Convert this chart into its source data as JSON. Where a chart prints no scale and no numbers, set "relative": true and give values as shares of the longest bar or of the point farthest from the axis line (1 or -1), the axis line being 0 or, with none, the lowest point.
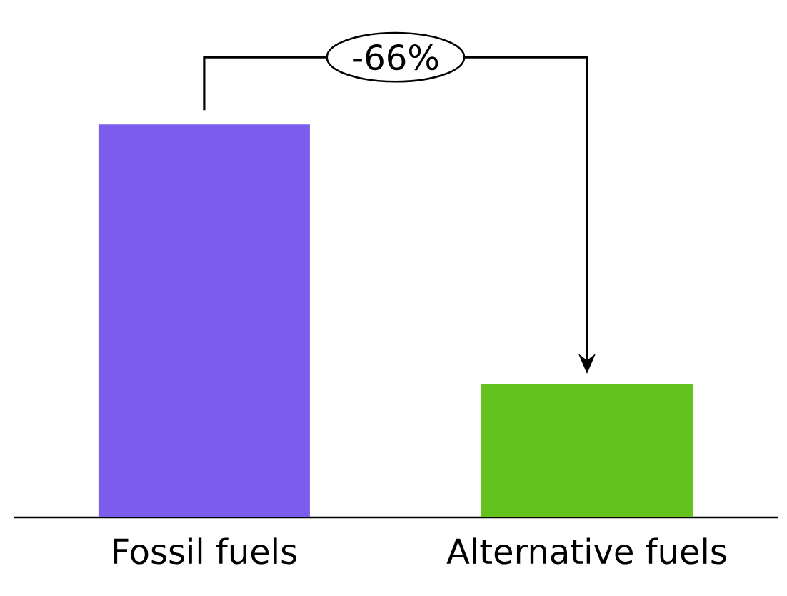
{
  "chart_data": {
    "type": "bar",
    "relative": true,
    "categories": [
      "Fossil fuels",
      "Alternative fuels"
    ],
    "values": [
      1,
      0.34
    ],
    "colors": [
      "#7b5cec",
      "#64c21e"
    ],
    "annotations": [
      "-66%"
    ]
  }
}
